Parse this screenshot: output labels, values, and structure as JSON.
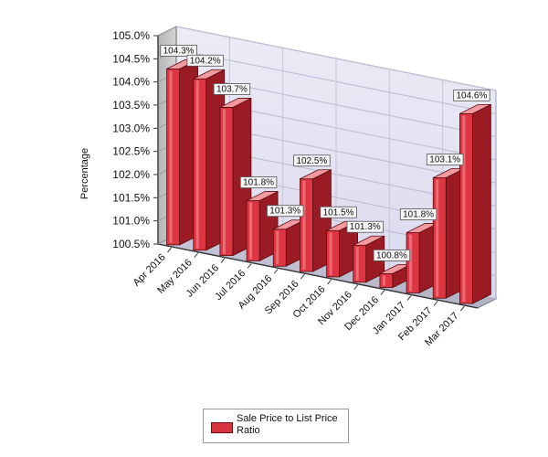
{
  "chart_data": {
    "type": "bar",
    "ylabel": "Percentage",
    "xlabel": "",
    "ylim": [
      100.5,
      105.0
    ],
    "y_ticks": [
      "100.5%",
      "101.0%",
      "101.5%",
      "102.0%",
      "102.5%",
      "103.0%",
      "103.5%",
      "104.0%",
      "104.5%",
      "105.0%"
    ],
    "categories": [
      "Apr 2016",
      "May 2016",
      "Jun 2016",
      "Jul 2016",
      "Aug 2016",
      "Sep 2016",
      "Oct 2016",
      "Nov 2016",
      "Dec 2016",
      "Jan 2017",
      "Feb 2017",
      "Mar 2017"
    ],
    "series": [
      {
        "name": "Sale Price to List Price Ratio",
        "values": [
          104.3,
          104.2,
          103.7,
          101.8,
          101.3,
          102.5,
          101.5,
          101.3,
          100.8,
          101.8,
          103.1,
          104.6
        ],
        "labels": [
          "104.3%",
          "104.2%",
          "103.7%",
          "101.8%",
          "101.3%",
          "102.5%",
          "101.5%",
          "101.3%",
          "100.8%",
          "101.8%",
          "103.1%",
          "104.6%"
        ],
        "color": "#e0343f"
      }
    ],
    "legend_position": "bottom",
    "grid": true,
    "style": "3d"
  }
}
